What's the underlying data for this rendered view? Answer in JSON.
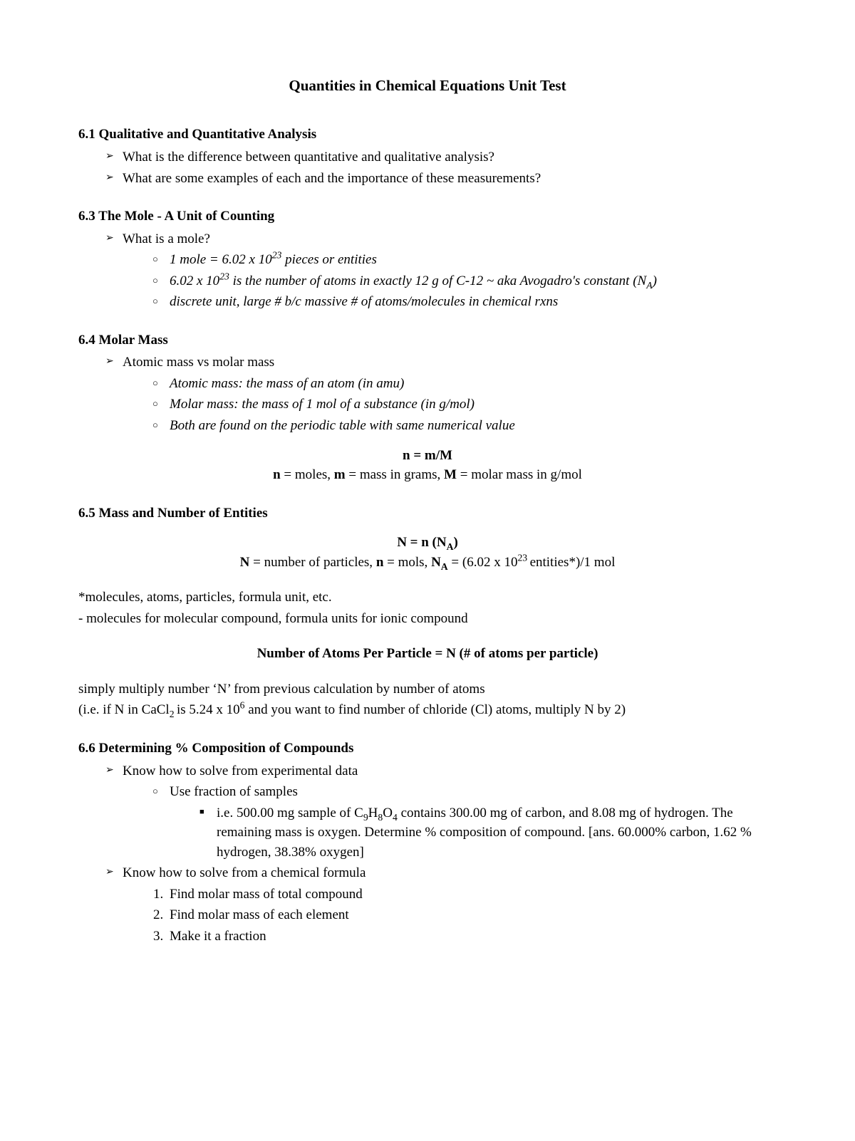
{
  "title": "Quantities in Chemical Equations Unit Test",
  "s61": {
    "heading": "6.1 Qualitative and Quantitative Analysis",
    "q1": "What is the difference between quantitative and qualitative analysis?",
    "q2": "What are some examples of each and the importance of these measurements?"
  },
  "s63": {
    "heading": "6.3 The Mole - A Unit of Counting",
    "q1": "What is a mole?",
    "a1_pre": "1 mole = 6.02 x 10",
    "a1_exp": "23",
    "a1_post": " pieces or entities",
    "a2_pre": "6.02 x 10",
    "a2_exp": "23",
    "a2_post": " is the number of atoms in exactly 12 g of C-12 ~ aka Avogadro's constant (N",
    "a2_sub": "A",
    "a2_close": ")",
    "a3": "discrete unit, large # b/c massive # of atoms/molecules in chemical rxns"
  },
  "s64": {
    "heading": "6.4 Molar Mass",
    "q1": "Atomic mass vs molar mass",
    "a1": "Atomic mass: the mass of an atom (in amu)",
    "a2": "Molar mass: the mass of 1 mol of a substance (in g/mol)",
    "a3": "Both are found on the periodic table with same numerical value",
    "formula": "n = m/M",
    "legend_pre": " = moles, ",
    "legend_mid": " = mass in grams, ",
    "legend_post": " = molar mass in g/mol",
    "n": "n",
    "m": "m",
    "M": "M"
  },
  "s65": {
    "heading": "6.5 Mass and Number of Entities",
    "formula_pre": "N = n (N",
    "formula_sub": "A",
    "formula_close": ")",
    "legend_N": "N",
    "legend_Ntxt": " = number of particles, ",
    "legend_n": "n",
    "legend_ntxt": " = mols, ",
    "legend_NA": "N",
    "legend_NAsub": "A",
    "legend_NAtxt_pre": " = (6.02 x 10",
    "legend_NAtxt_exp": "23 ",
    "legend_NAtxt_post": "entities*)/1 mol",
    "foot1": "*molecules, atoms, particles, formula unit, etc.",
    "foot2": "- molecules for molecular compound, formula units for ionic compound",
    "formula2": "Number of Atoms Per Particle = N (# of atoms per particle)",
    "explain1": "simply multiply number ‘N’ from previous calculation by number of atoms",
    "explain2_pre": "(i.e. if N in CaCl",
    "explain2_sub": "2 ",
    "explain2_mid": "is 5.24 x 10",
    "explain2_exp": "6",
    "explain2_post": " and you want to find number of chloride (Cl) atoms, multiply N by 2)"
  },
  "s66": {
    "heading": "6.6 Determining % Composition of Compounds",
    "b1": "Know how to solve from experimental data",
    "b1a": "Use fraction of samples",
    "b1a1_pre": "i.e. 500.00 mg sample of C",
    "b1a1_s1": "9",
    "b1a1_mid1": "H",
    "b1a1_s2": "8",
    "b1a1_mid2": "O",
    "b1a1_s3": "4",
    "b1a1_post": " contains 300.00 mg of carbon, and 8.08 mg of hydrogen. The remaining mass is oxygen. Determine % composition of compound. [ans. 60.000% carbon, 1.62 % hydrogen, 38.38% oxygen]",
    "b2": "Know how to solve from a chemical formula",
    "b2_1": "Find molar mass of total compound",
    "b2_2": "Find molar mass of each element",
    "b2_3": "Make it a fraction"
  }
}
